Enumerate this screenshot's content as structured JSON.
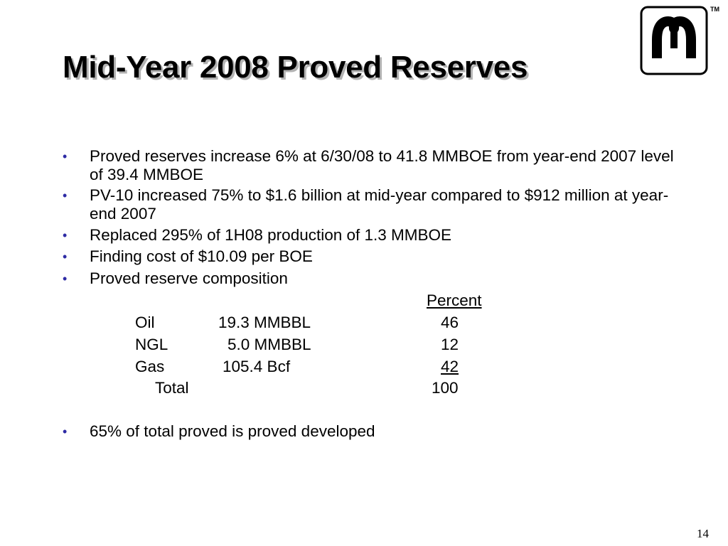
{
  "slide": {
    "title": "Mid-Year 2008 Proved Reserves",
    "trademark": "TM",
    "page_number": "14"
  },
  "bullets": [
    "Proved reserves increase 6% at 6/30/08 to 41.8 MMBOE from year-end 2007 level of 39.4 MMBOE",
    "PV-10 increased 75% to $1.6 billion at mid-year compared to $912 million at year-end 2007",
    "Replaced 295% of 1H08 production of 1.3 MMBOE",
    "Finding cost of $10.09 per BOE",
    "Proved reserve composition",
    "65% of total proved is proved developed"
  ],
  "composition": {
    "percent_header": "Percent",
    "rows": [
      {
        "label": "Oil",
        "amount": "19.3 MMBBL",
        "percent": "46"
      },
      {
        "label": "NGL",
        "amount": "5.0 MMBBL",
        "percent": "12"
      },
      {
        "label": "Gas",
        "amount": "105.4 Bcf",
        "percent": "42"
      }
    ],
    "total_label": "Total",
    "total_percent": "100"
  }
}
